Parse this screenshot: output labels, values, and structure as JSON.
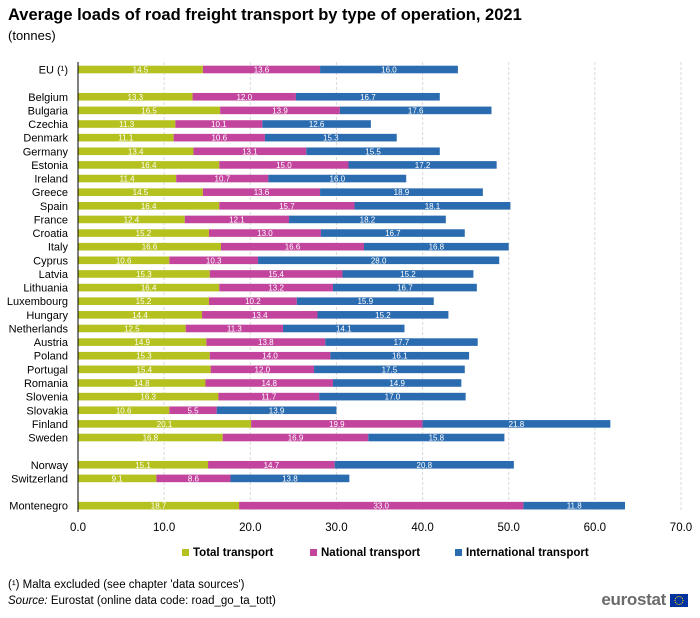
{
  "chart_data": {
    "type": "bar",
    "stacked": true,
    "orientation": "horizontal",
    "title": "Average loads of road freight transport by type of operation, 2021",
    "subtitle": "(tonnes)",
    "categories": [
      "EU (¹)",
      "Belgium",
      "Bulgaria",
      "Czechia",
      "Denmark",
      "Germany",
      "Estonia",
      "Ireland",
      "Greece",
      "Spain",
      "France",
      "Croatia",
      "Italy",
      "Cyprus",
      "Latvia",
      "Lithuania",
      "Luxembourg",
      "Hungary",
      "Netherlands",
      "Austria",
      "Poland",
      "Portugal",
      "Romania",
      "Slovenia",
      "Slovakia",
      "Finland",
      "Sweden",
      "Norway",
      "Switzerland",
      "Montenegro"
    ],
    "series": [
      {
        "name": "Total transport",
        "color": "#b5c11e",
        "values": [
          14.5,
          13.3,
          16.5,
          11.3,
          11.1,
          13.4,
          16.4,
          11.4,
          14.5,
          16.4,
          12.4,
          15.2,
          16.6,
          10.6,
          15.3,
          16.4,
          15.2,
          14.4,
          12.5,
          14.9,
          15.3,
          15.4,
          14.8,
          16.3,
          10.6,
          20.1,
          16.8,
          15.1,
          9.1,
          18.7
        ]
      },
      {
        "name": "National transport",
        "color": "#c2449d",
        "values": [
          13.6,
          12.0,
          13.9,
          10.1,
          10.6,
          13.1,
          15.0,
          10.7,
          13.6,
          15.7,
          12.1,
          13.0,
          16.6,
          10.3,
          15.4,
          13.2,
          10.2,
          13.4,
          11.3,
          13.8,
          14.0,
          12.0,
          14.8,
          11.7,
          5.5,
          19.9,
          16.9,
          14.7,
          8.6,
          33.0
        ]
      },
      {
        "name": "International transport",
        "color": "#2b6cb0",
        "values": [
          16.0,
          16.7,
          17.6,
          12.6,
          15.3,
          15.5,
          17.2,
          16.0,
          18.9,
          18.1,
          18.2,
          16.7,
          16.8,
          28.0,
          15.2,
          16.7,
          15.9,
          15.2,
          14.1,
          17.7,
          16.1,
          17.5,
          14.9,
          17.0,
          13.9,
          21.8,
          15.8,
          20.8,
          13.8,
          11.8
        ]
      }
    ],
    "x_ticks": [
      "0.0",
      "10.0",
      "20.0",
      "30.0",
      "40.0",
      "50.0",
      "60.0",
      "70.0"
    ],
    "xlim": [
      0,
      70
    ],
    "grid": "vertical",
    "legend_position": "bottom"
  },
  "footnote": "(¹) Malta excluded (see chapter 'data sources')",
  "source": {
    "label": "Source:",
    "text": " Eurostat (online data code: road_go_ta_tott)"
  },
  "logo": {
    "text": "eurostat",
    "flag_colors": [
      "#0033a0",
      "#ffcc00"
    ]
  }
}
